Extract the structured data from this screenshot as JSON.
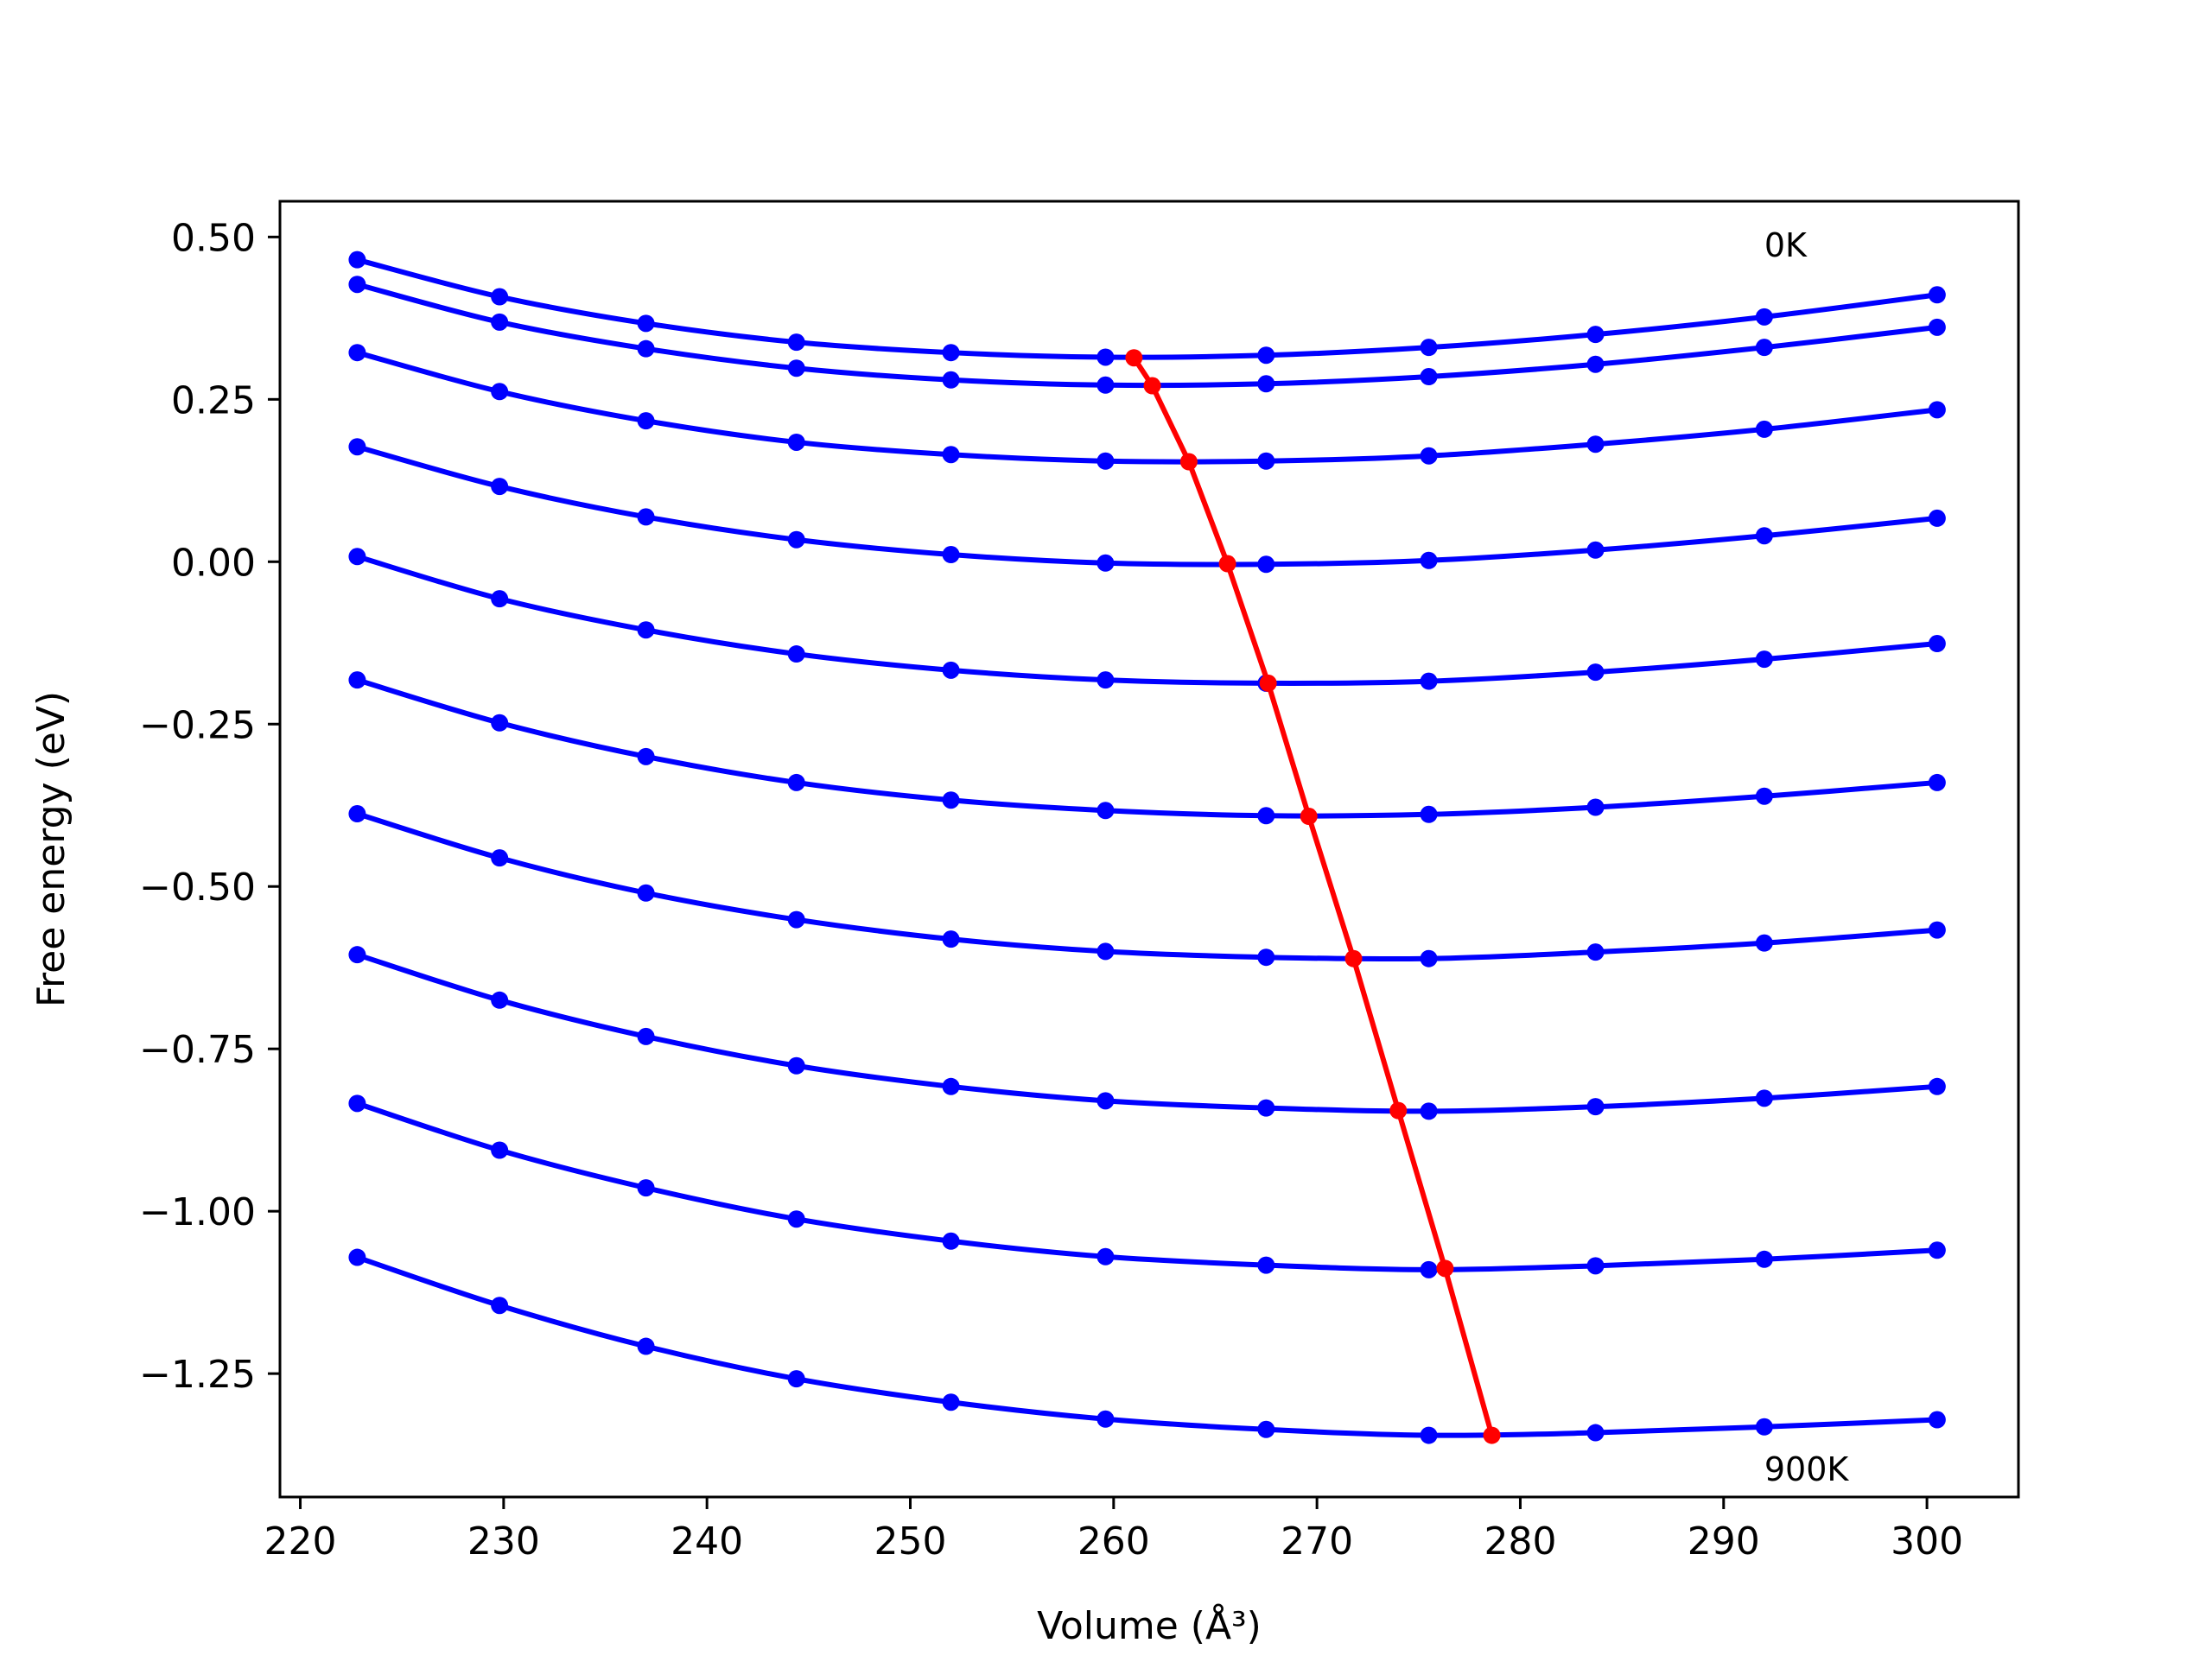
{
  "chart_data": {
    "type": "line",
    "title": "",
    "xlabel": "Volume (Å³)",
    "ylabel": "Free energy (eV)",
    "xlim": [
      219,
      304.5
    ],
    "ylim": [
      -1.44,
      0.555
    ],
    "xticks": [
      220,
      230,
      240,
      250,
      260,
      270,
      280,
      290,
      300
    ],
    "xtick_labels": [
      "220",
      "230",
      "240",
      "250",
      "260",
      "270",
      "280",
      "290",
      "300"
    ],
    "yticks": [
      0.5,
      0.25,
      0.0,
      -0.25,
      -0.5,
      -0.75,
      -1.0,
      -1.25
    ],
    "ytick_labels": [
      "0.50",
      "0.25",
      "0.00",
      "−0.25",
      "−0.50",
      "−0.75",
      "−1.00",
      "−1.25"
    ],
    "grid": false,
    "annotations": [
      {
        "text": "0K",
        "x": 292,
        "y": 0.47
      },
      {
        "text": "900K",
        "x": 292,
        "y": -1.415
      }
    ],
    "curve_color": "#0000ff",
    "minimum_color": "#ff0000",
    "volumes": [
      222.8,
      229.8,
      237.0,
      244.4,
      252.0,
      259.6,
      267.5,
      275.5,
      283.7,
      292.0,
      300.5
    ],
    "series": [
      {
        "values": [
          0.465,
          0.408,
          0.367,
          0.338,
          0.322,
          0.315,
          0.318,
          0.33,
          0.35,
          0.377,
          0.411
        ]
      },
      {
        "values": [
          0.427,
          0.369,
          0.328,
          0.298,
          0.28,
          0.272,
          0.274,
          0.285,
          0.304,
          0.33,
          0.361
        ]
      },
      {
        "values": [
          0.322,
          0.262,
          0.217,
          0.184,
          0.165,
          0.155,
          0.155,
          0.163,
          0.181,
          0.204,
          0.234
        ]
      },
      {
        "values": [
          0.177,
          0.116,
          0.069,
          0.034,
          0.011,
          -0.002,
          -0.004,
          0.002,
          0.018,
          0.04,
          0.067
        ]
      },
      {
        "values": [
          0.008,
          -0.057,
          -0.105,
          -0.142,
          -0.167,
          -0.182,
          -0.187,
          -0.184,
          -0.17,
          -0.15,
          -0.126
        ]
      },
      {
        "values": [
          -0.182,
          -0.248,
          -0.3,
          -0.34,
          -0.367,
          -0.383,
          -0.391,
          -0.389,
          -0.378,
          -0.361,
          -0.34
        ]
      },
      {
        "values": [
          -0.388,
          -0.456,
          -0.51,
          -0.551,
          -0.581,
          -0.6,
          -0.609,
          -0.611,
          -0.601,
          -0.587,
          -0.567
        ]
      },
      {
        "values": [
          -0.605,
          -0.675,
          -0.731,
          -0.776,
          -0.808,
          -0.83,
          -0.841,
          -0.846,
          -0.839,
          -0.826,
          -0.808
        ]
      },
      {
        "values": [
          -0.834,
          -0.906,
          -0.964,
          -1.012,
          -1.046,
          -1.07,
          -1.083,
          -1.09,
          -1.084,
          -1.074,
          -1.06
        ]
      },
      {
        "values": [
          -1.071,
          -1.145,
          -1.208,
          -1.258,
          -1.294,
          -1.32,
          -1.336,
          -1.345,
          -1.341,
          -1.332,
          -1.321
        ]
      }
    ],
    "minimum_curve": {
      "x": [
        261.0,
        261.9,
        263.7,
        265.6,
        267.6,
        269.6,
        271.8,
        274.0,
        276.3,
        278.6
      ],
      "y": [
        0.314,
        0.271,
        0.154,
        -0.003,
        -0.187,
        -0.392,
        -0.611,
        -0.845,
        -1.088,
        -1.345
      ]
    }
  }
}
